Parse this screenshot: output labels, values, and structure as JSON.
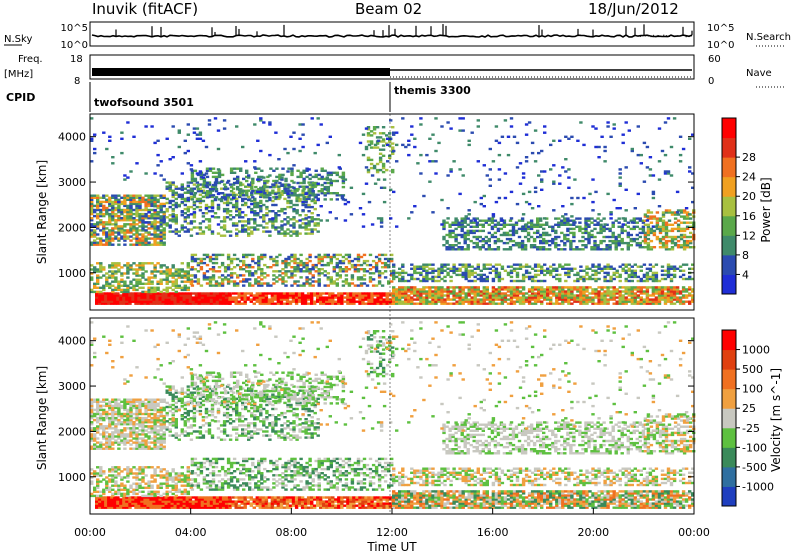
{
  "header": {
    "title": "Inuvik (fitACF)",
    "beam": "Beam 02",
    "date": "18/Jun/2012"
  },
  "chart_data": [
    {
      "type": "line",
      "panel": "noise",
      "left_label": "N.Sky",
      "right_label": "N.Search",
      "left_ticks": [
        "10^5",
        "10^0"
      ],
      "right_ticks": [
        "10^5",
        "10^0"
      ],
      "xlim": [
        0,
        24
      ]
    },
    {
      "type": "line",
      "panel": "frequency",
      "left_label_1": "Freq.",
      "left_label_2": "[MHz]",
      "right_label": "Nave",
      "left_ticks": [
        18,
        8
      ],
      "right_ticks": [
        60,
        0
      ],
      "ylim": [
        8,
        18
      ]
    },
    {
      "type": "table",
      "panel": "cpid",
      "label": "CPID",
      "programs": [
        {
          "name": "twofsound 3501",
          "start": 0,
          "end": 12
        },
        {
          "name": "themis 3300",
          "start": 12,
          "end": 24
        }
      ]
    },
    {
      "type": "heatmap",
      "panel": "power",
      "ylabel": "Slant Range [km]",
      "colorbar_label": "Power [dB]",
      "yticks": [
        1000,
        2000,
        3000,
        4000
      ],
      "ylim": [
        180,
        4500
      ],
      "colorbar_ticks": [
        4,
        8,
        12,
        16,
        20,
        24,
        28
      ],
      "colors": [
        "#1f2ed6",
        "#2b4bb0",
        "#3f8a6a",
        "#5aa84a",
        "#a8c040",
        "#f0a020",
        "#f07020",
        "#e03018",
        "#ff0000"
      ]
    },
    {
      "type": "heatmap",
      "panel": "velocity",
      "ylabel": "Slant Range [km]",
      "xlabel": "Time UT",
      "colorbar_label": "Velocity [m s^-1]",
      "yticks": [
        1000,
        2000,
        3000,
        4000
      ],
      "ylim": [
        180,
        4500
      ],
      "xticks": [
        "00:00",
        "04:00",
        "08:00",
        "12:00",
        "16:00",
        "20:00",
        "00:00"
      ],
      "xlim": [
        0,
        24
      ],
      "colorbar_ticks": [
        1000,
        500,
        100,
        25,
        -25,
        -100,
        -500,
        -1000
      ],
      "colors": [
        "#1f3fbf",
        "#2f6fa0",
        "#3a8a5a",
        "#5ec040",
        "#c8c8c0",
        "#f0a040",
        "#f07020",
        "#e04010",
        "#ff0000"
      ]
    }
  ]
}
